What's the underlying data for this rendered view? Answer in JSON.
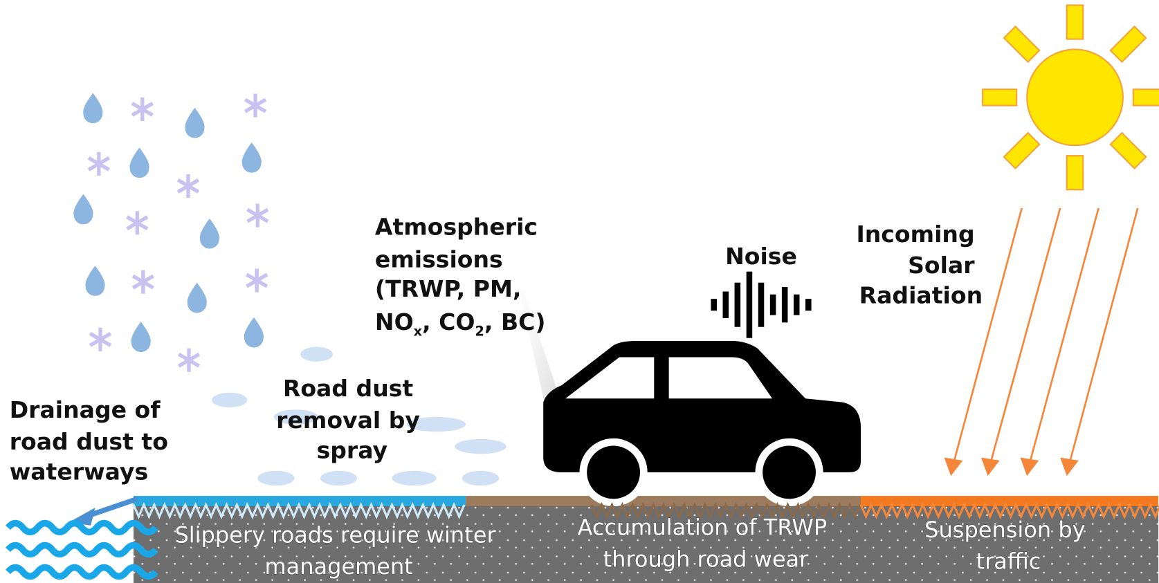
{
  "labels": {
    "atmospheric": {
      "lines": [
        "Atmospheric",
        "emissions",
        "(TRWP, PM,"
      ],
      "last_line": [
        "NO",
        "x",
        ", CO",
        "2",
        ", BC)"
      ]
    },
    "noise": "Noise",
    "solar": [
      "Incoming",
      "Solar",
      "Radiation"
    ],
    "drainage": [
      "Drainage of",
      "road dust to",
      "waterways"
    ],
    "dust_removal": [
      "Road dust",
      "removal by",
      "spray"
    ],
    "road_winter": [
      "Slippery roads require winter",
      "management"
    ],
    "road_wear": [
      "Accumulation of TRWP",
      "through road wear"
    ],
    "road_suspension": [
      "Suspension by",
      "traffic"
    ]
  }
}
